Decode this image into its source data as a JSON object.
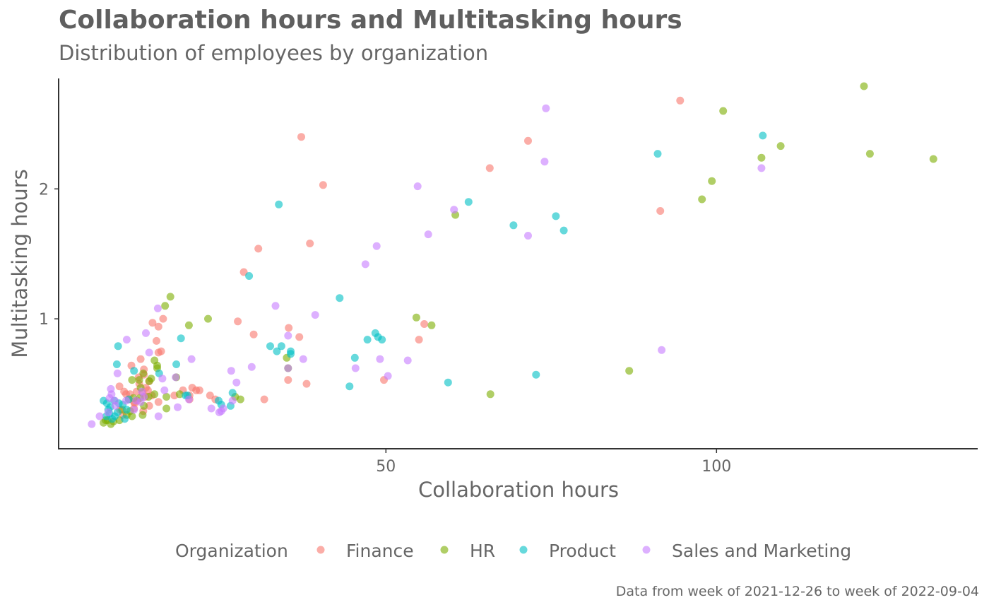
{
  "header": {
    "title": "Collaboration hours and Multitasking hours",
    "subtitle": "Distribution of employees by organization"
  },
  "footer": {
    "caption": "Data from week of 2021-12-26 to week of 2022-09-04"
  },
  "colors": {
    "Finance": "#F8766D",
    "HR": "#7CAE00",
    "Product": "#00BFC4",
    "Sales and Marketing": "#C77CFF",
    "axis": "#333333",
    "text": "#666666"
  },
  "chart_data": {
    "type": "scatter",
    "title": "Collaboration hours and Multitasking hours",
    "subtitle": "Distribution of employees by organization",
    "xlabel": "Collaboration hours",
    "ylabel": "Multitasking hours",
    "xlim": [
      0.5,
      139.5
    ],
    "ylim": [
      0.0,
      2.85
    ],
    "xticks": [
      50,
      100
    ],
    "yticks": [
      1,
      2
    ],
    "grid": false,
    "legend": {
      "title": "Organization",
      "position": "bottom",
      "entries": [
        "Finance",
        "HR",
        "Product",
        "Sales and Marketing"
      ]
    },
    "point_alpha": 0.6,
    "series": [
      {
        "name": "Finance",
        "points": [
          [
            94.5,
            2.68
          ],
          [
            37.2,
            2.4
          ],
          [
            71.5,
            2.37
          ],
          [
            65.7,
            2.16
          ],
          [
            40.5,
            2.03
          ],
          [
            91.5,
            1.83
          ],
          [
            38.5,
            1.58
          ],
          [
            30.7,
            1.54
          ],
          [
            28.5,
            1.36
          ],
          [
            35.3,
            0.93
          ],
          [
            36.9,
            0.86
          ],
          [
            30.0,
            0.88
          ],
          [
            27.6,
            0.98
          ],
          [
            55.8,
            0.96
          ],
          [
            55.0,
            0.84
          ],
          [
            35.2,
            0.53
          ],
          [
            38.0,
            0.5
          ],
          [
            49.7,
            0.53
          ],
          [
            31.6,
            0.38
          ],
          [
            24.2,
            0.38
          ],
          [
            20.3,
            0.41
          ],
          [
            20.7,
            0.47
          ],
          [
            21.3,
            0.45
          ],
          [
            21.8,
            0.45
          ],
          [
            14.7,
            0.97
          ],
          [
            15.6,
            0.94
          ],
          [
            15.3,
            0.83
          ],
          [
            16.3,
            1.0
          ],
          [
            16.0,
            0.75
          ],
          [
            12.9,
            0.69
          ],
          [
            11.5,
            0.64
          ],
          [
            13.4,
            0.57
          ],
          [
            13.4,
            0.61
          ],
          [
            14.2,
            0.52
          ],
          [
            12.7,
            0.5
          ],
          [
            13.7,
            0.47
          ],
          [
            12.3,
            0.44
          ],
          [
            13.2,
            0.43
          ],
          [
            11.3,
            0.42
          ],
          [
            13.6,
            0.4
          ],
          [
            12.4,
            0.37
          ],
          [
            12.0,
            0.35
          ],
          [
            14.6,
            0.41
          ],
          [
            15.6,
            0.36
          ],
          [
            14.2,
            0.33
          ],
          [
            13.3,
            0.29
          ],
          [
            10.4,
            0.44
          ],
          [
            10.7,
            0.42
          ],
          [
            11.1,
            0.38
          ],
          [
            11.9,
            0.31
          ],
          [
            10.2,
            0.26
          ],
          [
            9.8,
            0.3
          ],
          [
            20.3,
            0.38
          ],
          [
            19.3,
            0.45
          ],
          [
            18.0,
            0.41
          ],
          [
            14.0,
            0.45
          ],
          [
            12.6,
            0.55
          ],
          [
            15.6,
            0.74
          ],
          [
            11.9,
            0.36
          ],
          [
            9.7,
            0.48
          ],
          [
            23.4,
            0.41
          ]
        ]
      },
      {
        "name": "HR",
        "points": [
          [
            122.3,
            2.79
          ],
          [
            101.0,
            2.6
          ],
          [
            109.7,
            2.33
          ],
          [
            106.8,
            2.24
          ],
          [
            123.2,
            2.27
          ],
          [
            132.8,
            2.23
          ],
          [
            99.3,
            2.06
          ],
          [
            97.8,
            1.92
          ],
          [
            60.5,
            1.8
          ],
          [
            17.4,
            1.17
          ],
          [
            16.6,
            1.1
          ],
          [
            23.1,
            1.0
          ],
          [
            20.2,
            0.95
          ],
          [
            54.6,
            1.01
          ],
          [
            56.9,
            0.95
          ],
          [
            35.0,
            0.7
          ],
          [
            35.2,
            0.62
          ],
          [
            15.0,
            0.68
          ],
          [
            15.4,
            0.64
          ],
          [
            15.4,
            0.62
          ],
          [
            14.5,
            0.54
          ],
          [
            14.2,
            0.52
          ],
          [
            12.9,
            0.47
          ],
          [
            12.7,
            0.53
          ],
          [
            11.6,
            0.53
          ],
          [
            13.3,
            0.58
          ],
          [
            12.8,
            0.39
          ],
          [
            14.1,
            0.4
          ],
          [
            15.0,
            0.42
          ],
          [
            13.4,
            0.33
          ],
          [
            16.8,
            0.31
          ],
          [
            16.8,
            0.4
          ],
          [
            13.2,
            0.26
          ],
          [
            11.3,
            0.29
          ],
          [
            10.8,
            0.26
          ],
          [
            11.6,
            0.25
          ],
          [
            10.1,
            0.3
          ],
          [
            9.7,
            0.22
          ],
          [
            8.8,
            0.21
          ],
          [
            7.9,
            0.22
          ],
          [
            8.4,
            0.19
          ],
          [
            7.6,
            0.22
          ],
          [
            7.3,
            0.2
          ],
          [
            11.8,
            0.39
          ],
          [
            86.8,
            0.6
          ],
          [
            65.8,
            0.42
          ],
          [
            28.0,
            0.38
          ],
          [
            27.2,
            0.4
          ],
          [
            18.3,
            0.55
          ],
          [
            18.8,
            0.42
          ]
        ]
      },
      {
        "name": "Product",
        "points": [
          [
            107.0,
            2.41
          ],
          [
            91.1,
            2.27
          ],
          [
            62.5,
            1.9
          ],
          [
            33.8,
            1.88
          ],
          [
            69.3,
            1.72
          ],
          [
            75.7,
            1.79
          ],
          [
            76.9,
            1.68
          ],
          [
            29.3,
            1.33
          ],
          [
            43.0,
            1.16
          ],
          [
            9.5,
            0.79
          ],
          [
            19.0,
            0.85
          ],
          [
            18.3,
            0.65
          ],
          [
            9.3,
            0.65
          ],
          [
            11.9,
            0.6
          ],
          [
            15.7,
            0.58
          ],
          [
            32.5,
            0.79
          ],
          [
            33.5,
            0.75
          ],
          [
            34.2,
            0.79
          ],
          [
            35.6,
            0.75
          ],
          [
            35.6,
            0.73
          ],
          [
            45.3,
            0.7
          ],
          [
            47.2,
            0.84
          ],
          [
            48.4,
            0.89
          ],
          [
            48.8,
            0.86
          ],
          [
            49.4,
            0.84
          ],
          [
            59.4,
            0.51
          ],
          [
            72.7,
            0.57
          ],
          [
            44.5,
            0.48
          ],
          [
            24.7,
            0.37
          ],
          [
            25.1,
            0.34
          ],
          [
            26.5,
            0.33
          ],
          [
            26.8,
            0.43
          ],
          [
            19.7,
            0.41
          ],
          [
            20.0,
            0.41
          ],
          [
            7.3,
            0.37
          ],
          [
            7.8,
            0.35
          ],
          [
            8.3,
            0.32
          ],
          [
            9.6,
            0.35
          ],
          [
            8.9,
            0.37
          ],
          [
            10.2,
            0.34
          ],
          [
            10.8,
            0.3
          ],
          [
            9.4,
            0.28
          ],
          [
            8.2,
            0.27
          ],
          [
            9.0,
            0.25
          ],
          [
            7.7,
            0.25
          ],
          [
            10.5,
            0.23
          ],
          [
            8.6,
            0.23
          ],
          [
            11.1,
            0.38
          ],
          [
            8.0,
            0.3
          ]
        ]
      },
      {
        "name": "Sales and Marketing",
        "points": [
          [
            74.2,
            2.62
          ],
          [
            74.0,
            2.21
          ],
          [
            106.8,
            2.16
          ],
          [
            54.8,
            2.02
          ],
          [
            60.3,
            1.84
          ],
          [
            56.4,
            1.65
          ],
          [
            71.5,
            1.64
          ],
          [
            48.6,
            1.56
          ],
          [
            46.9,
            1.42
          ],
          [
            33.3,
            1.1
          ],
          [
            39.3,
            1.03
          ],
          [
            15.5,
            1.08
          ],
          [
            10.8,
            0.84
          ],
          [
            13.7,
            0.89
          ],
          [
            35.2,
            0.87
          ],
          [
            14.2,
            0.74
          ],
          [
            20.6,
            0.69
          ],
          [
            37.5,
            0.69
          ],
          [
            49.1,
            0.69
          ],
          [
            53.3,
            0.68
          ],
          [
            29.7,
            0.63
          ],
          [
            35.2,
            0.62
          ],
          [
            45.4,
            0.62
          ],
          [
            26.6,
            0.6
          ],
          [
            27.4,
            0.51
          ],
          [
            18.2,
            0.55
          ],
          [
            16.2,
            0.54
          ],
          [
            50.3,
            0.56
          ],
          [
            91.7,
            0.76
          ],
          [
            9.4,
            0.58
          ],
          [
            8.4,
            0.46
          ],
          [
            16.5,
            0.45
          ],
          [
            13.1,
            0.44
          ],
          [
            8.5,
            0.42
          ],
          [
            13.4,
            0.4
          ],
          [
            8.2,
            0.39
          ],
          [
            9.0,
            0.37
          ],
          [
            10.7,
            0.37
          ],
          [
            12.2,
            0.37
          ],
          [
            12.9,
            0.36
          ],
          [
            20.2,
            0.38
          ],
          [
            18.5,
            0.32
          ],
          [
            23.6,
            0.31
          ],
          [
            25.4,
            0.31
          ],
          [
            25.1,
            0.29
          ],
          [
            24.8,
            0.28
          ],
          [
            15.6,
            0.25
          ],
          [
            6.7,
            0.25
          ],
          [
            5.5,
            0.19
          ],
          [
            8.0,
            0.28
          ],
          [
            9.1,
            0.33
          ],
          [
            11.9,
            0.3
          ],
          [
            26.8,
            0.37
          ]
        ]
      }
    ]
  }
}
